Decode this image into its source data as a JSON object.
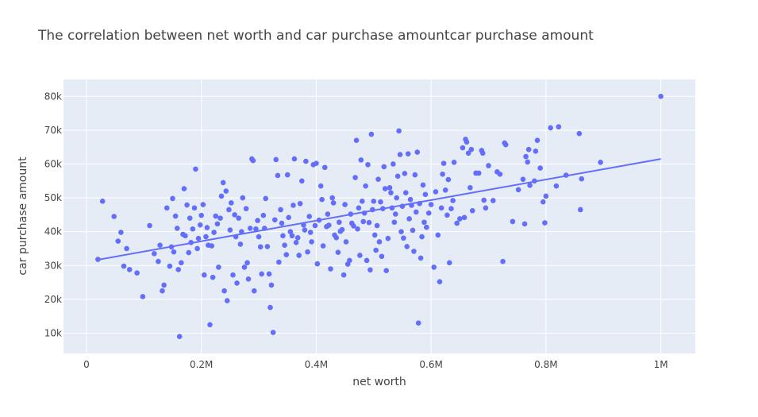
{
  "chart_data": {
    "type": "scatter",
    "title": "The correlation between net worth and car purchase amountcar purchase amount",
    "xlabel": "net worth",
    "ylabel": "car purchase amount",
    "xlim": [
      -40000,
      1060000
    ],
    "ylim": [
      4000,
      85000
    ],
    "x_ticks": [
      0,
      200000,
      400000,
      600000,
      800000,
      1000000
    ],
    "x_tick_labels": [
      "0",
      "0.2M",
      "0.4M",
      "0.6M",
      "0.8M",
      "1M"
    ],
    "y_ticks": [
      10000,
      20000,
      30000,
      40000,
      50000,
      60000,
      70000,
      80000
    ],
    "y_tick_labels": [
      "10k",
      "20k",
      "30k",
      "40k",
      "50k",
      "60k",
      "70k",
      "80k"
    ],
    "grid": true,
    "colors": {
      "marker": "#636efa",
      "trend": "#636efa",
      "plot_bg": "#e5ecf6",
      "grid": "#ffffff",
      "text": "#444444"
    },
    "trendline": {
      "x": [
        20000,
        1000000
      ],
      "y": [
        31700,
        61500
      ]
    },
    "points": [
      [
        20000,
        31800
      ],
      [
        28000,
        49000
      ],
      [
        48000,
        44500
      ],
      [
        55000,
        37200
      ],
      [
        60000,
        39800
      ],
      [
        65000,
        29800
      ],
      [
        70000,
        35000
      ],
      [
        75000,
        28800
      ],
      [
        88000,
        27800
      ],
      [
        98000,
        20800
      ],
      [
        110000,
        41800
      ],
      [
        118000,
        33500
      ],
      [
        125000,
        31200
      ],
      [
        128000,
        36000
      ],
      [
        132000,
        22500
      ],
      [
        135000,
        24200
      ],
      [
        140000,
        47000
      ],
      [
        145000,
        29800
      ],
      [
        148000,
        35500
      ],
      [
        150000,
        49800
      ],
      [
        152000,
        34000
      ],
      [
        155000,
        44600
      ],
      [
        158000,
        41000
      ],
      [
        160000,
        28800
      ],
      [
        162000,
        9000
      ],
      [
        165000,
        30800
      ],
      [
        168000,
        39200
      ],
      [
        170000,
        52700
      ],
      [
        172000,
        38800
      ],
      [
        175000,
        47900
      ],
      [
        178000,
        33800
      ],
      [
        180000,
        44000
      ],
      [
        182000,
        36800
      ],
      [
        185000,
        40800
      ],
      [
        188000,
        47000
      ],
      [
        190000,
        58500
      ],
      [
        193000,
        35000
      ],
      [
        195000,
        38000
      ],
      [
        198000,
        42000
      ],
      [
        200000,
        44800
      ],
      [
        203000,
        48000
      ],
      [
        205000,
        27200
      ],
      [
        208000,
        38500
      ],
      [
        210000,
        41200
      ],
      [
        212000,
        36000
      ],
      [
        215000,
        12500
      ],
      [
        218000,
        35800
      ],
      [
        220000,
        26500
      ],
      [
        222000,
        39800
      ],
      [
        225000,
        44600
      ],
      [
        228000,
        42300
      ],
      [
        230000,
        29500
      ],
      [
        233000,
        44000
      ],
      [
        235000,
        50500
      ],
      [
        238000,
        54500
      ],
      [
        240000,
        22500
      ],
      [
        243000,
        52000
      ],
      [
        245000,
        19600
      ],
      [
        248000,
        46500
      ],
      [
        250000,
        40500
      ],
      [
        252000,
        48500
      ],
      [
        255000,
        27200
      ],
      [
        258000,
        45000
      ],
      [
        260000,
        38500
      ],
      [
        262000,
        24800
      ],
      [
        265000,
        44000
      ],
      [
        268000,
        36300
      ],
      [
        270000,
        40000
      ],
      [
        272000,
        50000
      ],
      [
        275000,
        29500
      ],
      [
        278000,
        46800
      ],
      [
        280000,
        30800
      ],
      [
        282000,
        26000
      ],
      [
        285000,
        41000
      ],
      [
        288000,
        61500
      ],
      [
        290000,
        61000
      ],
      [
        292000,
        22500
      ],
      [
        295000,
        40800
      ],
      [
        298000,
        43300
      ],
      [
        300000,
        38500
      ],
      [
        303000,
        35500
      ],
      [
        305000,
        27500
      ],
      [
        308000,
        44800
      ],
      [
        310000,
        41000
      ],
      [
        312000,
        49800
      ],
      [
        315000,
        35600
      ],
      [
        318000,
        27500
      ],
      [
        320000,
        17600
      ],
      [
        322000,
        24200
      ],
      [
        325000,
        10200
      ],
      [
        328000,
        43500
      ],
      [
        330000,
        61300
      ],
      [
        333000,
        56600
      ],
      [
        335000,
        31000
      ],
      [
        338000,
        46500
      ],
      [
        340000,
        42500
      ],
      [
        342000,
        38800
      ],
      [
        345000,
        36000
      ],
      [
        348000,
        33200
      ],
      [
        350000,
        56800
      ],
      [
        352000,
        44200
      ],
      [
        355000,
        40000
      ],
      [
        358000,
        38800
      ],
      [
        360000,
        47800
      ],
      [
        362000,
        61500
      ],
      [
        365000,
        36800
      ],
      [
        368000,
        38200
      ],
      [
        370000,
        33000
      ],
      [
        372000,
        48300
      ],
      [
        375000,
        55000
      ],
      [
        378000,
        42000
      ],
      [
        380000,
        40500
      ],
      [
        382000,
        60800
      ],
      [
        385000,
        34000
      ],
      [
        388000,
        44500
      ],
      [
        390000,
        39800
      ],
      [
        392000,
        37000
      ],
      [
        395000,
        59800
      ],
      [
        398000,
        41800
      ],
      [
        400000,
        60200
      ],
      [
        402000,
        30500
      ],
      [
        405000,
        43400
      ],
      [
        408000,
        53500
      ],
      [
        410000,
        49500
      ],
      [
        412000,
        35800
      ],
      [
        415000,
        59000
      ],
      [
        418000,
        41500
      ],
      [
        420000,
        45200
      ],
      [
        422000,
        41900
      ],
      [
        425000,
        29000
      ],
      [
        428000,
        50000
      ],
      [
        430000,
        48500
      ],
      [
        432000,
        39000
      ],
      [
        435000,
        38200
      ],
      [
        438000,
        33900
      ],
      [
        440000,
        42800
      ],
      [
        442000,
        40100
      ],
      [
        445000,
        40600
      ],
      [
        448000,
        27200
      ],
      [
        450000,
        48000
      ],
      [
        452000,
        37000
      ],
      [
        455000,
        30400
      ],
      [
        458000,
        31500
      ],
      [
        460000,
        45200
      ],
      [
        462000,
        42500
      ],
      [
        465000,
        41700
      ],
      [
        468000,
        56000
      ],
      [
        470000,
        67000
      ],
      [
        472000,
        40800
      ],
      [
        474000,
        47000
      ],
      [
        476000,
        33000
      ],
      [
        478000,
        61200
      ],
      [
        480000,
        49000
      ],
      [
        482000,
        43000
      ],
      [
        484000,
        45500
      ],
      [
        486000,
        53500
      ],
      [
        488000,
        31500
      ],
      [
        490000,
        59800
      ],
      [
        492000,
        42700
      ],
      [
        494000,
        28700
      ],
      [
        496000,
        68800
      ],
      [
        498000,
        46500
      ],
      [
        500000,
        49000
      ],
      [
        502000,
        39000
      ],
      [
        504000,
        34500
      ],
      [
        506000,
        41800
      ],
      [
        508000,
        55500
      ],
      [
        510000,
        37000
      ],
      [
        512000,
        48800
      ],
      [
        514000,
        32700
      ],
      [
        516000,
        46800
      ],
      [
        518000,
        59200
      ],
      [
        520000,
        52700
      ],
      [
        522000,
        28500
      ],
      [
        525000,
        38000
      ],
      [
        528000,
        53000
      ],
      [
        530000,
        51500
      ],
      [
        532000,
        47000
      ],
      [
        534000,
        60000
      ],
      [
        536000,
        42800
      ],
      [
        538000,
        45200
      ],
      [
        540000,
        50000
      ],
      [
        542000,
        56400
      ],
      [
        544000,
        69800
      ],
      [
        546000,
        62800
      ],
      [
        548000,
        40000
      ],
      [
        550000,
        47500
      ],
      [
        552000,
        38100
      ],
      [
        554000,
        57200
      ],
      [
        556000,
        51500
      ],
      [
        558000,
        35600
      ],
      [
        560000,
        63000
      ],
      [
        562000,
        43800
      ],
      [
        564000,
        49500
      ],
      [
        566000,
        47800
      ],
      [
        568000,
        40400
      ],
      [
        570000,
        34200
      ],
      [
        572000,
        56800
      ],
      [
        574000,
        45800
      ],
      [
        576000,
        63500
      ],
      [
        578000,
        13000
      ],
      [
        580000,
        48300
      ],
      [
        582000,
        32200
      ],
      [
        584000,
        38500
      ],
      [
        586000,
        53800
      ],
      [
        588000,
        42800
      ],
      [
        590000,
        51000
      ],
      [
        592000,
        41300
      ],
      [
        596000,
        45500
      ],
      [
        600000,
        48000
      ],
      [
        605000,
        29500
      ],
      [
        608000,
        51800
      ],
      [
        612000,
        39000
      ],
      [
        615000,
        25200
      ],
      [
        618000,
        47000
      ],
      [
        620000,
        57000
      ],
      [
        622000,
        60200
      ],
      [
        625000,
        52300
      ],
      [
        628000,
        44900
      ],
      [
        630000,
        55400
      ],
      [
        632000,
        30800
      ],
      [
        635000,
        46800
      ],
      [
        638000,
        49200
      ],
      [
        640000,
        60500
      ],
      [
        645000,
        42500
      ],
      [
        650000,
        43800
      ],
      [
        655000,
        64800
      ],
      [
        658000,
        44200
      ],
      [
        660000,
        67300
      ],
      [
        662000,
        66500
      ],
      [
        665000,
        63200
      ],
      [
        668000,
        53000
      ],
      [
        670000,
        64300
      ],
      [
        672000,
        46200
      ],
      [
        678000,
        57300
      ],
      [
        683000,
        57300
      ],
      [
        688000,
        64000
      ],
      [
        690000,
        63200
      ],
      [
        692000,
        49300
      ],
      [
        695000,
        47000
      ],
      [
        700000,
        59500
      ],
      [
        708000,
        49200
      ],
      [
        715000,
        57700
      ],
      [
        720000,
        57000
      ],
      [
        725000,
        31200
      ],
      [
        728000,
        66200
      ],
      [
        730000,
        65700
      ],
      [
        742000,
        43000
      ],
      [
        752000,
        52400
      ],
      [
        760000,
        55500
      ],
      [
        763000,
        42300
      ],
      [
        765000,
        62200
      ],
      [
        768000,
        60600
      ],
      [
        770000,
        64300
      ],
      [
        772000,
        53700
      ],
      [
        780000,
        55000
      ],
      [
        782000,
        63800
      ],
      [
        785000,
        67000
      ],
      [
        790000,
        58800
      ],
      [
        795000,
        48800
      ],
      [
        798000,
        42600
      ],
      [
        800000,
        50500
      ],
      [
        808000,
        70700
      ],
      [
        818000,
        53500
      ],
      [
        822000,
        71000
      ],
      [
        835000,
        56700
      ],
      [
        858000,
        69000
      ],
      [
        860000,
        46500
      ],
      [
        862000,
        55600
      ],
      [
        895000,
        60500
      ],
      [
        1000000,
        80000
      ]
    ]
  }
}
